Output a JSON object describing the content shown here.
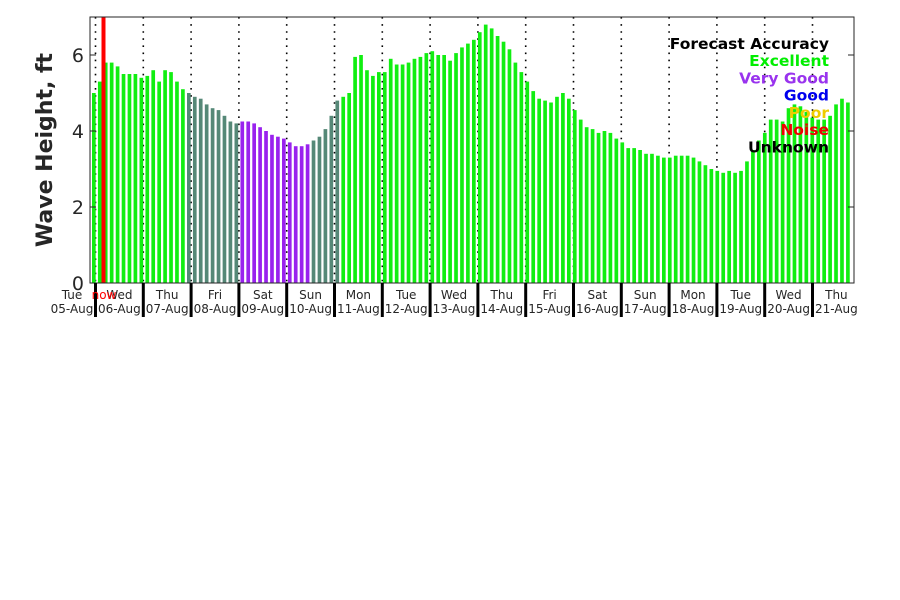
{
  "chart_data": {
    "type": "bar",
    "ylabel": "Wave Height, ft",
    "ylim": [
      0,
      7
    ],
    "yticks": [
      0,
      2,
      4,
      6
    ],
    "grid": "vertical dotted at day boundaries",
    "now_label": "now",
    "now_color": "#ff0000",
    "day_labels": [
      {
        "dow": "Tue",
        "date": "05-Aug"
      },
      {
        "dow": "Wed",
        "date": "06-Aug"
      },
      {
        "dow": "Thu",
        "date": "07-Aug"
      },
      {
        "dow": "Fri",
        "date": "08-Aug"
      },
      {
        "dow": "Sat",
        "date": "09-Aug"
      },
      {
        "dow": "Sun",
        "date": "10-Aug"
      },
      {
        "dow": "Mon",
        "date": "11-Aug"
      },
      {
        "dow": "Tue",
        "date": "12-Aug"
      },
      {
        "dow": "Wed",
        "date": "13-Aug"
      },
      {
        "dow": "Thu",
        "date": "14-Aug"
      },
      {
        "dow": "Fri",
        "date": "15-Aug"
      },
      {
        "dow": "Sat",
        "date": "16-Aug"
      },
      {
        "dow": "Sun",
        "date": "17-Aug"
      },
      {
        "dow": "Mon",
        "date": "18-Aug"
      },
      {
        "dow": "Tue",
        "date": "19-Aug"
      },
      {
        "dow": "Wed",
        "date": "20-Aug"
      },
      {
        "dow": "Thu",
        "date": "21-Aug"
      }
    ],
    "legend": {
      "title": "Forecast Accuracy",
      "placement": "top-right",
      "entries": [
        {
          "label": "Excellent",
          "color": "#00ee00"
        },
        {
          "label": "Very Good",
          "color": "#9933ee"
        },
        {
          "label": "Good",
          "color": "#0000ee"
        },
        {
          "label": "Poor",
          "color": "#eecc00"
        },
        {
          "label": "Noise",
          "color": "#ee0000"
        },
        {
          "label": "Unknown",
          "color": "#000000"
        }
      ]
    },
    "bar_colors": {
      "excellent": "#11ee11",
      "very_good": "#9922ee",
      "transition": "#558877"
    },
    "series": [
      {
        "values": [
          5.0,
          5.3,
          5.8,
          5.8,
          5.7,
          5.5,
          5.5,
          5.5,
          5.4,
          5.45,
          5.6,
          5.3,
          5.6,
          5.55,
          5.3,
          5.1,
          5.0,
          4.9,
          4.85,
          4.7,
          4.6,
          4.55,
          4.4,
          4.25,
          4.2,
          4.25,
          4.25,
          4.2,
          4.1,
          4.0,
          3.9,
          3.85,
          3.8,
          3.7,
          3.6,
          3.6,
          3.65,
          3.75,
          3.85,
          4.05,
          4.4,
          4.8,
          4.9,
          5.0,
          5.95,
          6.0,
          5.6,
          5.45,
          5.55,
          5.55,
          5.9,
          5.75,
          5.75,
          5.8,
          5.9,
          5.95,
          6.05,
          6.1,
          6.0,
          6.0,
          5.85,
          6.05,
          6.2,
          6.3,
          6.4,
          6.6,
          6.8,
          6.7,
          6.5,
          6.35,
          6.15,
          5.8,
          5.55,
          5.3,
          5.05,
          4.85,
          4.8,
          4.75,
          4.9,
          5.0,
          4.85,
          4.55,
          4.3,
          4.1,
          4.05,
          3.95,
          4.0,
          3.95,
          3.8,
          3.7,
          3.55,
          3.55,
          3.5,
          3.4,
          3.4,
          3.35,
          3.3,
          3.3,
          3.35,
          3.35,
          3.35,
          3.3,
          3.2,
          3.1,
          3.0,
          2.95,
          2.9,
          2.95,
          2.9,
          2.95,
          3.2,
          3.5,
          3.75,
          3.95,
          4.3,
          4.3,
          4.25,
          4.6,
          4.7,
          4.65,
          4.5,
          4.35,
          4.3,
          4.3,
          4.4,
          4.7,
          4.85,
          4.75
        ],
        "accuracy": [
          "excellent",
          "excellent",
          "excellent",
          "excellent",
          "excellent",
          "excellent",
          "excellent",
          "excellent",
          "excellent",
          "excellent",
          "excellent",
          "excellent",
          "excellent",
          "excellent",
          "excellent",
          "excellent",
          "transition",
          "transition",
          "transition",
          "transition",
          "transition",
          "transition",
          "transition",
          "transition",
          "transition",
          "very_good",
          "very_good",
          "very_good",
          "very_good",
          "very_good",
          "very_good",
          "very_good",
          "very_good",
          "very_good",
          "very_good",
          "very_good",
          "very_good",
          "transition",
          "transition",
          "transition",
          "transition",
          "transition",
          "excellent",
          "excellent",
          "excellent",
          "excellent",
          "excellent",
          "excellent",
          "excellent",
          "excellent",
          "excellent",
          "excellent",
          "excellent",
          "excellent",
          "excellent",
          "excellent",
          "excellent",
          "excellent",
          "excellent",
          "excellent",
          "excellent",
          "excellent",
          "excellent",
          "excellent",
          "excellent",
          "excellent",
          "excellent",
          "excellent",
          "excellent",
          "excellent",
          "excellent",
          "excellent",
          "excellent",
          "excellent",
          "excellent",
          "excellent",
          "excellent",
          "excellent",
          "excellent",
          "excellent",
          "excellent",
          "excellent",
          "excellent",
          "excellent",
          "excellent",
          "excellent",
          "excellent",
          "excellent",
          "excellent",
          "excellent",
          "excellent",
          "excellent",
          "excellent",
          "excellent",
          "excellent",
          "excellent",
          "excellent",
          "excellent",
          "excellent",
          "excellent",
          "excellent",
          "excellent",
          "excellent",
          "excellent",
          "excellent",
          "excellent",
          "excellent",
          "excellent",
          "excellent",
          "excellent",
          "excellent",
          "excellent",
          "excellent",
          "excellent",
          "excellent",
          "excellent",
          "excellent",
          "excellent",
          "excellent",
          "excellent",
          "excellent",
          "excellent",
          "excellent",
          "excellent",
          "excellent",
          "excellent",
          "excellent",
          "excellent"
        ]
      }
    ]
  }
}
